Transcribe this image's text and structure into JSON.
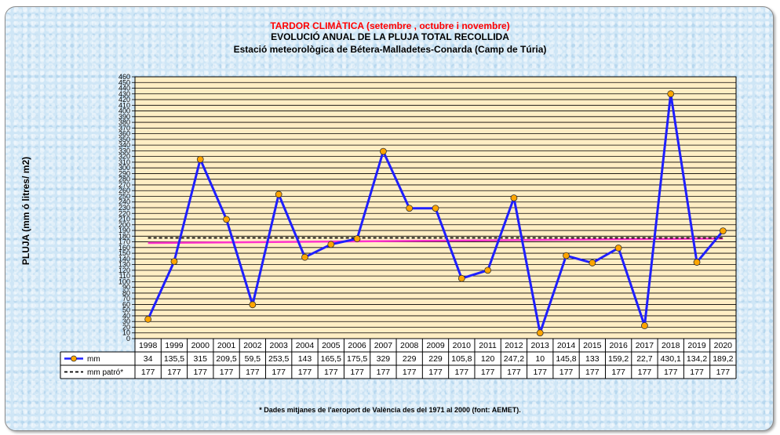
{
  "chart_data": {
    "type": "line",
    "title": "TARDOR CLIMÀTICA (setembre , octubre i novembre)",
    "subtitle1": "EVOLUCIÓ ANUAL DE LA PLUJA TOTAL RECOLLIDA",
    "subtitle2": "Estació meteorològica de Bétera-Malladetes-Conarda (Camp de Túria)",
    "ylabel": "PLUJA  (mm ó litres/ m2)",
    "ylim": [
      0,
      460
    ],
    "ytick_step": 10,
    "categories": [
      "1998",
      "1999",
      "2000",
      "2001",
      "2002",
      "2003",
      "2004",
      "2005",
      "2006",
      "2007",
      "2008",
      "2009",
      "2010",
      "2011",
      "2012",
      "2013",
      "2014",
      "2015",
      "2016",
      "2017",
      "2018",
      "2019",
      "2020"
    ],
    "series": [
      {
        "name": "mm",
        "color": "#1f1fff",
        "marker_color": "#ffa500",
        "values": [
          34,
          135.5,
          315,
          209.5,
          59.5,
          253.5,
          143,
          165.5,
          175.5,
          329,
          229,
          229,
          105.8,
          120,
          247.2,
          10,
          145.8,
          133,
          159.2,
          22.7,
          430.1,
          134.2,
          189.2
        ],
        "labels": [
          "34",
          "135,5",
          "315",
          "209,5",
          "59,5",
          "253,5",
          "143",
          "165,5",
          "175,5",
          "329",
          "229",
          "229",
          "105,8",
          "120",
          "247,2",
          "10",
          "145,8",
          "133",
          "159,2",
          "22,7",
          "430,1",
          "134,2",
          "189,2"
        ]
      },
      {
        "name": "mm patró*",
        "color": "#000000",
        "dashed": true,
        "values": [
          177,
          177,
          177,
          177,
          177,
          177,
          177,
          177,
          177,
          177,
          177,
          177,
          177,
          177,
          177,
          177,
          177,
          177,
          177,
          177,
          177,
          177,
          177
        ],
        "labels": [
          "177",
          "177",
          "177",
          "177",
          "177",
          "177",
          "177",
          "177",
          "177",
          "177",
          "177",
          "177",
          "177",
          "177",
          "177",
          "177",
          "177",
          "177",
          "177",
          "177",
          "177",
          "177",
          "177"
        ]
      }
    ],
    "trendline": {
      "color": "#ff33cc",
      "start": 168,
      "end": 176
    },
    "grid": true,
    "plot_background": "#ffeec4",
    "footnote": "* Dades mitjanes de l'aeroport de València des del 1971 al 2000 (font: AEMET)."
  }
}
